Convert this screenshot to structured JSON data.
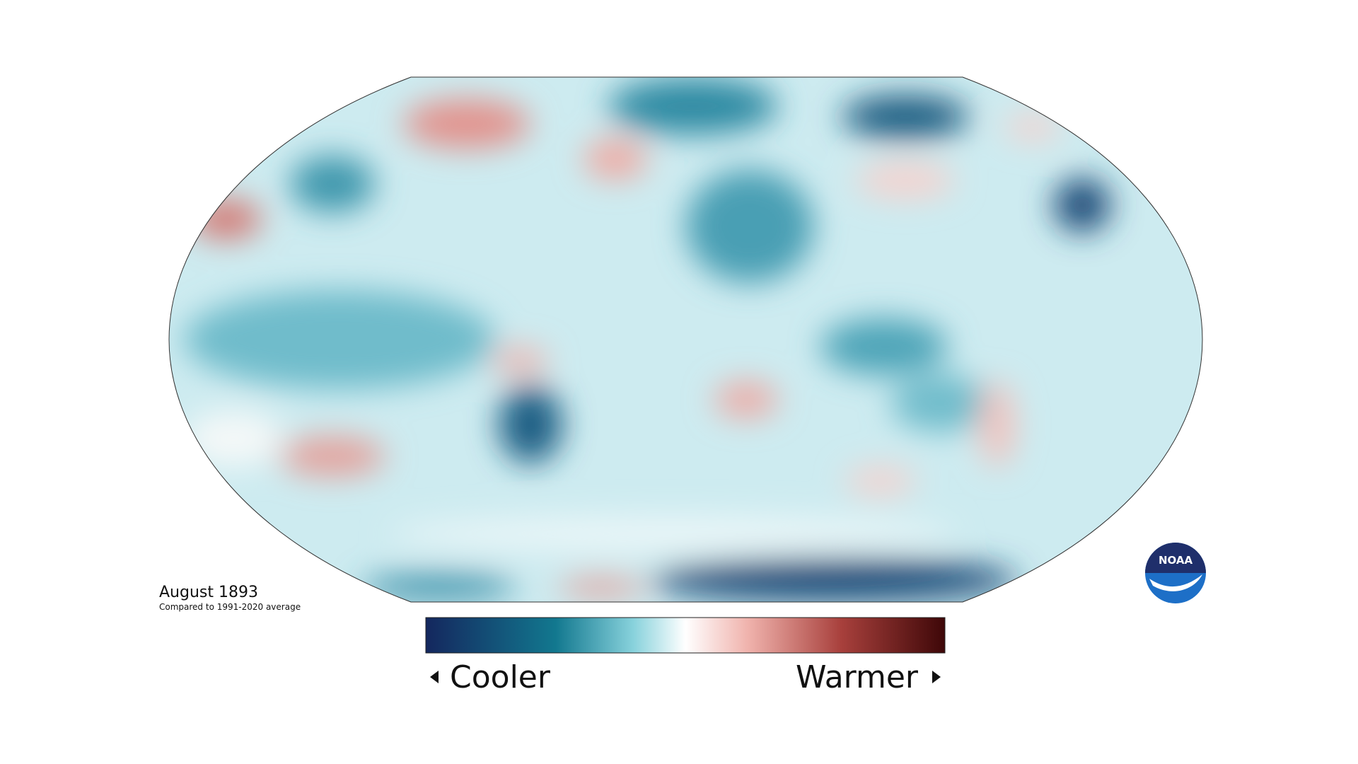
{
  "title": "August 1893",
  "subtitle": "Compared to 1991-2020 average",
  "legend": {
    "low": "Cooler",
    "high": "Warmer"
  },
  "logo": "NOAA"
}
